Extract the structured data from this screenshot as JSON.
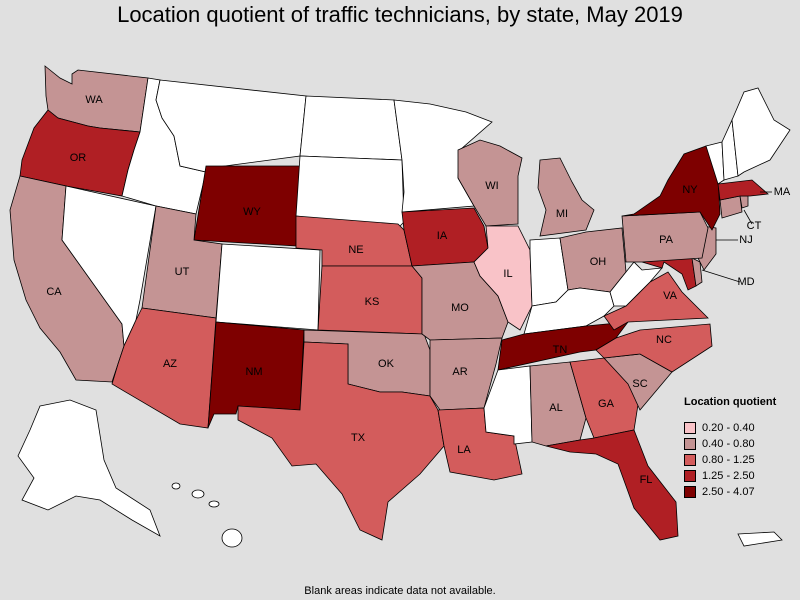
{
  "title": "Location quotient of traffic technicians, by state, May 2019",
  "footnote": "Blank areas indicate data not available.",
  "legend": {
    "title": "Location quotient",
    "items": [
      {
        "label": "0.20 - 0.40",
        "color": "#f9c3c8"
      },
      {
        "label": "0.40 - 0.80",
        "color": "#c49494"
      },
      {
        "label": "0.80 - 1.25",
        "color": "#d35c5c"
      },
      {
        "label": "1.25 - 2.50",
        "color": "#b01f24"
      },
      {
        "label": "2.50 - 4.07",
        "color": "#7e0000"
      }
    ]
  },
  "colors": {
    "background": "#e0e0e0",
    "no_data": "#ffffff",
    "outline": "#000000"
  },
  "states": [
    {
      "code": "WA",
      "label": "WA",
      "class": 1
    },
    {
      "code": "OR",
      "label": "OR",
      "class": 3
    },
    {
      "code": "CA",
      "label": "CA",
      "class": 1
    },
    {
      "code": "NV",
      "label": "",
      "class": null
    },
    {
      "code": "ID",
      "label": "",
      "class": null
    },
    {
      "code": "MT",
      "label": "",
      "class": null
    },
    {
      "code": "WY",
      "label": "WY",
      "class": 4
    },
    {
      "code": "UT",
      "label": "UT",
      "class": 1
    },
    {
      "code": "AZ",
      "label": "AZ",
      "class": 2
    },
    {
      "code": "CO",
      "label": "",
      "class": null
    },
    {
      "code": "NM",
      "label": "NM",
      "class": 4
    },
    {
      "code": "ND",
      "label": "",
      "class": null
    },
    {
      "code": "SD",
      "label": "",
      "class": null
    },
    {
      "code": "NE",
      "label": "NE",
      "class": 2
    },
    {
      "code": "KS",
      "label": "KS",
      "class": 2
    },
    {
      "code": "OK",
      "label": "OK",
      "class": 1
    },
    {
      "code": "TX",
      "label": "TX",
      "class": 2
    },
    {
      "code": "MN",
      "label": "",
      "class": null
    },
    {
      "code": "IA",
      "label": "IA",
      "class": 3
    },
    {
      "code": "MO",
      "label": "MO",
      "class": 1
    },
    {
      "code": "AR",
      "label": "AR",
      "class": 1
    },
    {
      "code": "LA",
      "label": "LA",
      "class": 2
    },
    {
      "code": "WI",
      "label": "WI",
      "class": 1
    },
    {
      "code": "IL",
      "label": "IL",
      "class": 0
    },
    {
      "code": "MI",
      "label": "MI",
      "class": 1
    },
    {
      "code": "IN",
      "label": "",
      "class": null
    },
    {
      "code": "OH",
      "label": "OH",
      "class": 1
    },
    {
      "code": "KY",
      "label": "",
      "class": null
    },
    {
      "code": "TN",
      "label": "TN",
      "class": 4
    },
    {
      "code": "MS",
      "label": "",
      "class": null
    },
    {
      "code": "AL",
      "label": "AL",
      "class": 1
    },
    {
      "code": "GA",
      "label": "GA",
      "class": 2
    },
    {
      "code": "FL",
      "label": "FL",
      "class": 3
    },
    {
      "code": "SC",
      "label": "SC",
      "class": 1
    },
    {
      "code": "NC",
      "label": "NC",
      "class": 2
    },
    {
      "code": "VA",
      "label": "VA",
      "class": 2
    },
    {
      "code": "WV",
      "label": "",
      "class": null
    },
    {
      "code": "MD",
      "label": "MD",
      "class": 3
    },
    {
      "code": "DE",
      "label": "",
      "class": 1
    },
    {
      "code": "NJ",
      "label": "NJ",
      "class": 1
    },
    {
      "code": "PA",
      "label": "PA",
      "class": 1
    },
    {
      "code": "NY",
      "label": "NY",
      "class": 4
    },
    {
      "code": "CT",
      "label": "CT",
      "class": 1
    },
    {
      "code": "RI",
      "label": "",
      "class": 1
    },
    {
      "code": "MA",
      "label": "MA",
      "class": 3
    },
    {
      "code": "VT",
      "label": "",
      "class": null
    },
    {
      "code": "NH",
      "label": "",
      "class": null
    },
    {
      "code": "ME",
      "label": "",
      "class": null
    },
    {
      "code": "AK",
      "label": "",
      "class": null
    },
    {
      "code": "HI",
      "label": "",
      "class": null
    },
    {
      "code": "PR",
      "label": "",
      "class": null
    }
  ]
}
